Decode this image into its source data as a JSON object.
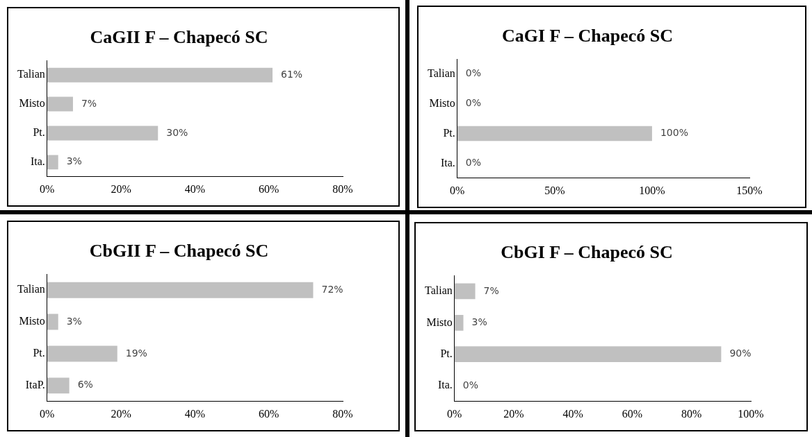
{
  "chart_data": [
    {
      "type": "bar",
      "orientation": "horizontal",
      "title": "CaGII F – Chapecó SC",
      "categories": [
        "Talian",
        "Misto",
        "Pt.",
        "Ita."
      ],
      "values": [
        61,
        7,
        30,
        3
      ],
      "value_labels": [
        "61%",
        "7%",
        "30%",
        "3%"
      ],
      "color": "#c0c0c0",
      "xlim": [
        0,
        80
      ],
      "xticks": [
        {
          "value": 0,
          "label": "0%"
        },
        {
          "value": 20,
          "label": "20%"
        },
        {
          "value": 40,
          "label": "40%"
        },
        {
          "value": 60,
          "label": "60%"
        },
        {
          "value": 80,
          "label": "80%"
        }
      ],
      "grid": false,
      "legend": false
    },
    {
      "type": "bar",
      "orientation": "horizontal",
      "title": "CaGI F – Chapecó SC",
      "categories": [
        "Talian",
        "Misto",
        "Pt.",
        "Ita."
      ],
      "values": [
        0,
        0,
        100,
        0
      ],
      "value_labels": [
        "0%",
        "0%",
        "100%",
        "0%"
      ],
      "color": "#c0c0c0",
      "xlim": [
        0,
        150
      ],
      "xticks": [
        {
          "value": 0,
          "label": "0%"
        },
        {
          "value": 50,
          "label": "50%"
        },
        {
          "value": 100,
          "label": "100%"
        },
        {
          "value": 150,
          "label": "150%"
        }
      ],
      "grid": false,
      "legend": false
    },
    {
      "type": "bar",
      "orientation": "horizontal",
      "title": "CbGII F – Chapecó SC",
      "categories": [
        "Talian",
        "Misto",
        "Pt.",
        "ItaP."
      ],
      "values": [
        72,
        3,
        19,
        6
      ],
      "value_labels": [
        "72%",
        "3%",
        "19%",
        "6%"
      ],
      "color": "#c0c0c0",
      "xlim": [
        0,
        80
      ],
      "xticks": [
        {
          "value": 0,
          "label": "0%"
        },
        {
          "value": 20,
          "label": "20%"
        },
        {
          "value": 40,
          "label": "40%"
        },
        {
          "value": 60,
          "label": "60%"
        },
        {
          "value": 80,
          "label": "80%"
        }
      ],
      "grid": false,
      "legend": false
    },
    {
      "type": "bar",
      "orientation": "horizontal",
      "title": "CbGI F – Chapecó SC",
      "categories": [
        "Talian",
        "Misto",
        "Pt.",
        "Ita."
      ],
      "values": [
        7,
        3,
        90,
        0
      ],
      "value_labels": [
        "7%",
        "3%",
        "90%",
        "0%"
      ],
      "color": "#c0c0c0",
      "xlim": [
        0,
        100
      ],
      "xticks": [
        {
          "value": 0,
          "label": "0%"
        },
        {
          "value": 20,
          "label": "20%"
        },
        {
          "value": 40,
          "label": "40%"
        },
        {
          "value": 60,
          "label": "60%"
        },
        {
          "value": 80,
          "label": "80%"
        },
        {
          "value": 100,
          "label": "100%"
        }
      ],
      "grid": false,
      "legend": false
    }
  ]
}
